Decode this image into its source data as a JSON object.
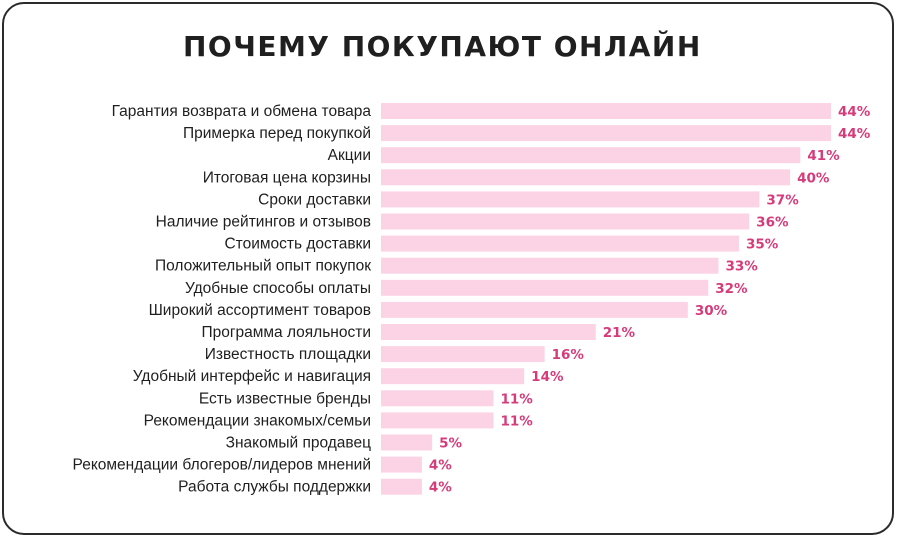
{
  "title": "ПОЧЕМУ ПОКУПАЮТ ОНЛАЙН",
  "colors": {
    "bar": "#fcd3e4",
    "value_text": "#d63b7a",
    "text": "#1f1f1f",
    "frame": "#2b2b2b"
  },
  "chart_data": {
    "type": "bar",
    "orientation": "horizontal",
    "title": "ПОЧЕМУ ПОКУПАЮТ ОНЛАЙН",
    "xlabel": "",
    "ylabel": "",
    "unit": "%",
    "xlim": [
      0,
      44
    ],
    "grid": false,
    "categories": [
      "Гарантия возврата и обмена товара",
      "Примерка перед покупкой",
      "Акции",
      "Итоговая цена корзины",
      "Сроки доставки",
      "Наличие рейтингов и отзывов",
      "Стоимость доставки",
      "Положительный опыт покупок",
      "Удобные способы оплаты",
      "Широкий ассортимент товаров",
      "Программа лояльности",
      "Известность площадки",
      "Удобный интерфейс и навигация",
      "Есть известные бренды",
      "Рекомендации знакомых/семьи",
      "Знакомый продавец",
      "Рекомендации блогеров/лидеров мнений",
      "Работа службы поддержки"
    ],
    "values": [
      44,
      44,
      41,
      40,
      37,
      36,
      35,
      33,
      32,
      30,
      21,
      16,
      14,
      11,
      11,
      5,
      4,
      4
    ],
    "value_labels": [
      "44%",
      "44%",
      "41%",
      "40%",
      "37%",
      "36%",
      "35%",
      "33%",
      "32%",
      "30%",
      "21%",
      "16%",
      "14%",
      "11%",
      "11%",
      "5%",
      "4%",
      "4%"
    ]
  }
}
